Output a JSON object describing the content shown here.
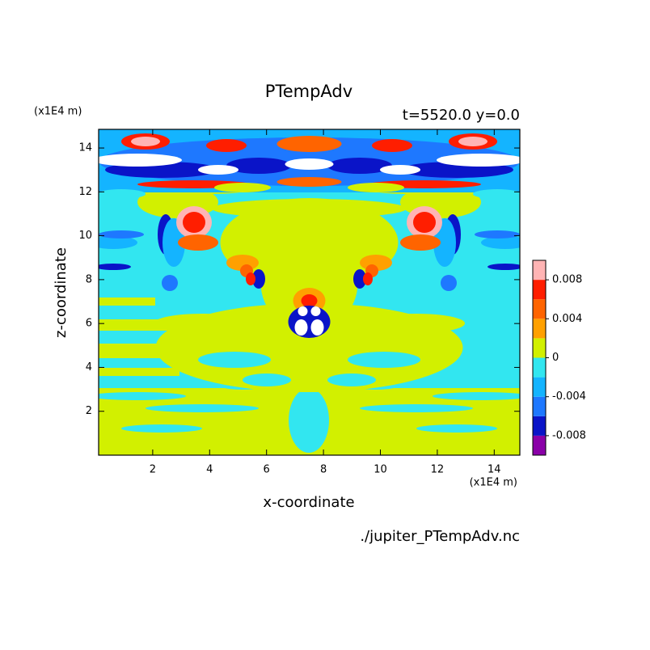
{
  "chart_data": {
    "type": "contour",
    "title": "PTempAdv",
    "subtitle": "t=5520.0 y=0.0",
    "x_label": "x-coordinate",
    "y_label": "z-coordinate",
    "x_unit": "(x1E4 m)",
    "y_unit": "(x1E4 m)",
    "footer": "./jupiter_PTempAdv.nc",
    "xlim": [
      0.1,
      14.9
    ],
    "ylim": [
      0,
      14.85
    ],
    "xticks": [
      2,
      4,
      6,
      8,
      10,
      12,
      14
    ],
    "yticks": [
      2,
      4,
      6,
      8,
      10,
      12,
      14
    ],
    "levels": [
      -0.01,
      -0.008,
      -0.006,
      -0.004,
      -0.002,
      0,
      0.002,
      0.004,
      0.006,
      0.008,
      0.01
    ],
    "colors": [
      "#8a00a8",
      "#0a14c8",
      "#1e78ff",
      "#14b4ff",
      "#32e6f0",
      "#d2f000",
      "#ffa000",
      "#ff6400",
      "#ff1e00",
      "#ffb4b4"
    ],
    "colorbar_ticks": [
      -0.008,
      -0.004,
      0,
      0.004,
      0.008
    ]
  }
}
